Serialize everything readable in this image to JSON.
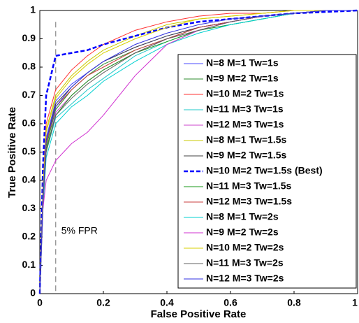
{
  "chart_data": {
    "type": "line",
    "xlabel": "False Positive Rate",
    "ylabel": "True Positive Rate",
    "x": [
      0,
      0.01,
      0.02,
      0.05,
      0.1,
      0.15,
      0.2,
      0.3,
      0.4,
      0.5,
      0.6,
      0.7,
      0.8,
      0.9,
      1
    ],
    "xlim": [
      0,
      1
    ],
    "ylim": [
      0,
      1
    ],
    "xticks": [
      0,
      0.2,
      0.4,
      0.6,
      0.8,
      1
    ],
    "yticks": [
      0,
      0.1,
      0.2,
      0.3,
      0.4,
      0.5,
      0.6,
      0.7,
      0.8,
      0.9,
      1
    ],
    "legend": "lower right",
    "annotation": {
      "text": "5% FPR",
      "x": 0.05
    },
    "series": [
      {
        "name": "N=8  M=1  Tw=1s",
        "color": "#4b4bff",
        "values": [
          0,
          0.35,
          0.55,
          0.68,
          0.74,
          0.78,
          0.82,
          0.87,
          0.91,
          0.94,
          0.96,
          0.98,
          0.99,
          1,
          1
        ]
      },
      {
        "name": "N=9  M=2  Tw=1s",
        "color": "#2e8b2e",
        "values": [
          0,
          0.33,
          0.52,
          0.65,
          0.72,
          0.77,
          0.81,
          0.86,
          0.9,
          0.94,
          0.96,
          0.98,
          0.99,
          1,
          1
        ]
      },
      {
        "name": "N=10 M=2 Tw=1s",
        "color": "#ff3030",
        "values": [
          0,
          0.38,
          0.6,
          0.72,
          0.79,
          0.84,
          0.88,
          0.93,
          0.96,
          0.98,
          0.99,
          0.99,
          1,
          1,
          1
        ]
      },
      {
        "name": "N=11 M=3 Tw=1s",
        "color": "#20c8c8",
        "values": [
          0,
          0.3,
          0.5,
          0.62,
          0.67,
          0.72,
          0.76,
          0.84,
          0.89,
          0.93,
          0.95,
          0.97,
          0.99,
          1,
          1
        ]
      },
      {
        "name": "N=12 M=3 Tw=1s",
        "color": "#cc44cc",
        "values": [
          0,
          0.32,
          0.5,
          0.64,
          0.7,
          0.75,
          0.79,
          0.85,
          0.9,
          0.93,
          0.96,
          0.98,
          0.99,
          1,
          1
        ]
      },
      {
        "name": "N=8 M=1 Tw=1.5s",
        "color": "#c8c800",
        "values": [
          0,
          0.36,
          0.58,
          0.7,
          0.77,
          0.82,
          0.86,
          0.91,
          0.95,
          0.97,
          0.98,
          0.99,
          1,
          1,
          1
        ]
      },
      {
        "name": "N=9 M=2 Tw=1.5s",
        "color": "#404040",
        "values": [
          0,
          0.34,
          0.54,
          0.67,
          0.73,
          0.78,
          0.82,
          0.87,
          0.91,
          0.94,
          0.96,
          0.98,
          0.99,
          1,
          1
        ]
      },
      {
        "name": "N=10 M=2 Tw=1.5s (Best)",
        "color": "#0000ff",
        "dashed": true,
        "values": [
          0,
          0.45,
          0.7,
          0.84,
          0.85,
          0.86,
          0.88,
          0.91,
          0.94,
          0.96,
          0.97,
          0.98,
          0.99,
          0.995,
          1
        ]
      },
      {
        "name": "N=11 M=3 Tw=1.5s",
        "color": "#1a9a1a",
        "values": [
          0,
          0.31,
          0.51,
          0.63,
          0.7,
          0.75,
          0.79,
          0.85,
          0.89,
          0.93,
          0.95,
          0.97,
          0.99,
          1,
          1
        ]
      },
      {
        "name": "N=12 M=3 Tw=1.5s",
        "color": "#c83c3c",
        "values": [
          0,
          0.33,
          0.53,
          0.66,
          0.72,
          0.77,
          0.8,
          0.86,
          0.9,
          0.94,
          0.96,
          0.98,
          0.99,
          1,
          1
        ]
      },
      {
        "name": "N=8 M=1 Tw=2s",
        "color": "#00d0d0",
        "values": [
          0,
          0.3,
          0.48,
          0.6,
          0.66,
          0.7,
          0.75,
          0.82,
          0.88,
          0.92,
          0.95,
          0.97,
          0.99,
          1,
          1
        ]
      },
      {
        "name": "N=9 M=2 Tw=2s",
        "color": "#d030d0",
        "values": [
          0,
          0.3,
          0.4,
          0.47,
          0.53,
          0.57,
          0.63,
          0.77,
          0.88,
          0.93,
          0.96,
          0.98,
          0.99,
          1,
          1
        ]
      },
      {
        "name": "N=10 M=2 Tw=2s",
        "color": "#d8d000",
        "values": [
          0,
          0.37,
          0.57,
          0.69,
          0.76,
          0.81,
          0.85,
          0.9,
          0.94,
          0.97,
          0.98,
          0.99,
          1,
          1,
          1
        ]
      },
      {
        "name": "N=11 M=3 Tw=2s",
        "color": "#606060",
        "values": [
          0,
          0.32,
          0.5,
          0.63,
          0.69,
          0.74,
          0.78,
          0.85,
          0.9,
          0.93,
          0.96,
          0.98,
          0.99,
          1,
          1
        ]
      },
      {
        "name": "N=12 M=3 Tw=2s",
        "color": "#3030e0",
        "values": [
          0,
          0.34,
          0.54,
          0.66,
          0.73,
          0.78,
          0.82,
          0.88,
          0.92,
          0.95,
          0.97,
          0.98,
          0.99,
          1,
          1
        ]
      }
    ]
  }
}
